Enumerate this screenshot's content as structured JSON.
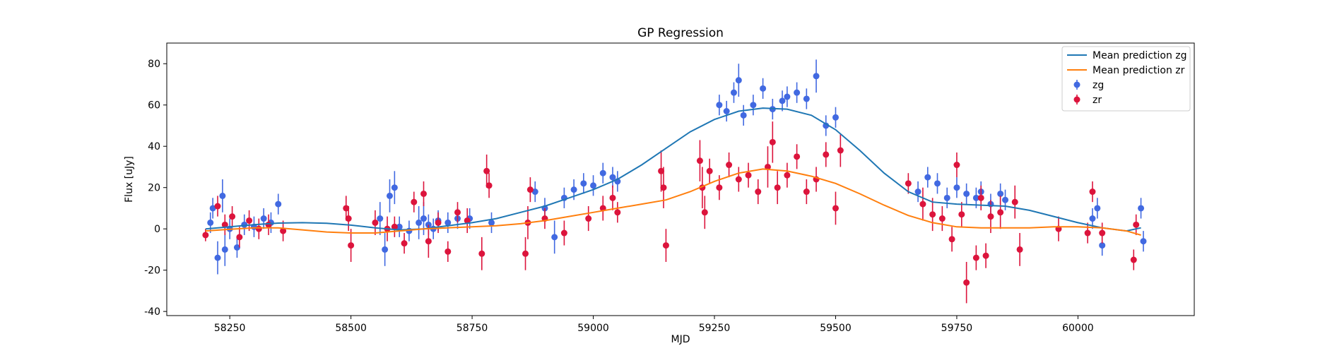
{
  "chart_data": {
    "type": "scatter",
    "title": "GP Regression",
    "xlabel": "MJD",
    "ylabel": "Flux [uJy]",
    "xlim": [
      58120,
      60240
    ],
    "ylim": [
      -42,
      90
    ],
    "xticks": [
      58250,
      58500,
      58750,
      59000,
      59250,
      59500,
      59750,
      60000
    ],
    "yticks": [
      -40,
      -20,
      0,
      20,
      40,
      60,
      80
    ],
    "legend_position": "upper right",
    "grid": false,
    "series": [
      {
        "name": "Mean prediction zg",
        "kind": "line",
        "color": "#1f77b4",
        "x": [
          58200,
          58250,
          58300,
          58350,
          58400,
          58450,
          58500,
          58550,
          58600,
          58650,
          58700,
          58750,
          58800,
          58850,
          58900,
          58950,
          59000,
          59050,
          59100,
          59150,
          59200,
          59250,
          59300,
          59350,
          59400,
          59450,
          59500,
          59550,
          59600,
          59650,
          59700,
          59750,
          59800,
          59850,
          59900,
          59950,
          60000,
          60050,
          60100,
          60130
        ],
        "values": [
          0,
          1,
          2,
          2.8,
          3,
          2.7,
          1.8,
          0.5,
          -0.5,
          0,
          1.5,
          3,
          5,
          8,
          11,
          15,
          19,
          24,
          31,
          39,
          47,
          53,
          57,
          58.5,
          58,
          55,
          48,
          38,
          27,
          18,
          13,
          12,
          11.5,
          11,
          9,
          6,
          3,
          0.5,
          -1,
          0.5
        ]
      },
      {
        "name": "Mean prediction zr",
        "kind": "line",
        "color": "#ff7f0e",
        "x": [
          58200,
          58250,
          58300,
          58350,
          58400,
          58450,
          58500,
          58550,
          58600,
          58650,
          58700,
          58750,
          58800,
          58850,
          58900,
          58950,
          59000,
          59050,
          59100,
          59150,
          59200,
          59250,
          59300,
          59350,
          59400,
          59450,
          59500,
          59550,
          59600,
          59650,
          59700,
          59750,
          59800,
          59850,
          59900,
          59950,
          60000,
          60050,
          60100,
          60130
        ],
        "values": [
          -1,
          -0.2,
          0.5,
          0.5,
          -0.5,
          -1.5,
          -2,
          -2,
          -1,
          0,
          0.5,
          1,
          1.5,
          2.5,
          4,
          6,
          8,
          10,
          12,
          14,
          18,
          23,
          27,
          29,
          28,
          25.5,
          22,
          17,
          11.5,
          6.5,
          3,
          1,
          0.5,
          0.5,
          0.5,
          1,
          1,
          0.5,
          -1,
          -3
        ]
      },
      {
        "name": "zg",
        "kind": "errorbar",
        "color": "#4169e1",
        "x": [
          58210,
          58215,
          58225,
          58235,
          58240,
          58250,
          58265,
          58280,
          58300,
          58320,
          58335,
          58350,
          58560,
          58570,
          58580,
          58590,
          58600,
          58620,
          58640,
          58650,
          58660,
          58670,
          58680,
          58700,
          58720,
          58745,
          58790,
          58880,
          58900,
          58920,
          58940,
          58960,
          58980,
          59000,
          59020,
          59040,
          59050,
          59260,
          59275,
          59290,
          59300,
          59310,
          59330,
          59350,
          59370,
          59390,
          59400,
          59420,
          59440,
          59460,
          59480,
          59500,
          59670,
          59690,
          59710,
          59730,
          59750,
          59770,
          59790,
          59800,
          59820,
          59840,
          59850,
          60030,
          60040,
          60050,
          60130,
          60135
        ],
        "values": [
          3,
          10,
          -14,
          16,
          -10,
          0,
          -9,
          2,
          1,
          5,
          3,
          12,
          5,
          -10,
          16,
          20,
          1,
          -1,
          3,
          5,
          2,
          0,
          4,
          3,
          5,
          5,
          3,
          18,
          10,
          -4,
          15,
          19,
          22,
          21,
          27,
          25,
          23,
          60,
          57,
          66,
          72,
          55,
          60,
          68,
          58,
          62,
          64,
          66,
          63,
          74,
          50,
          54,
          18,
          25,
          22,
          15,
          20,
          17,
          15,
          18,
          12,
          17,
          14,
          5,
          10,
          -8,
          10,
          -6
        ],
        "errors": [
          5,
          5,
          8,
          8,
          8,
          5,
          5,
          5,
          5,
          5,
          5,
          5,
          8,
          8,
          8,
          8,
          5,
          5,
          8,
          8,
          5,
          5,
          5,
          5,
          5,
          5,
          5,
          5,
          5,
          8,
          5,
          5,
          5,
          5,
          5,
          5,
          5,
          5,
          5,
          5,
          8,
          5,
          5,
          5,
          5,
          5,
          5,
          5,
          5,
          8,
          5,
          5,
          5,
          5,
          5,
          5,
          5,
          5,
          5,
          5,
          5,
          5,
          5,
          5,
          5,
          5,
          5,
          5
        ]
      },
      {
        "name": "zr",
        "kind": "errorbar",
        "color": "#dc143c",
        "x": [
          58200,
          58225,
          58240,
          58255,
          58270,
          58290,
          58310,
          58330,
          58360,
          58490,
          58495,
          58500,
          58550,
          58575,
          58590,
          58610,
          58630,
          58650,
          58660,
          58680,
          58700,
          58720,
          58740,
          58770,
          58780,
          58785,
          58860,
          58865,
          58870,
          58900,
          58940,
          58990,
          59020,
          59040,
          59050,
          59140,
          59145,
          59150,
          59220,
          59225,
          59230,
          59240,
          59260,
          59280,
          59300,
          59320,
          59340,
          59360,
          59370,
          59380,
          59400,
          59420,
          59440,
          59460,
          59480,
          59500,
          59510,
          59650,
          59680,
          59700,
          59720,
          59740,
          59750,
          59760,
          59770,
          59790,
          59800,
          59810,
          59820,
          59840,
          59870,
          59880,
          59960,
          60020,
          60030,
          60050,
          60115,
          60120
        ],
        "values": [
          -3,
          11,
          2,
          6,
          -4,
          4,
          0,
          2,
          -1,
          10,
          5,
          -8,
          3,
          0,
          1,
          -7,
          13,
          17,
          -6,
          3,
          -11,
          8,
          4,
          -12,
          28,
          21,
          -12,
          3,
          19,
          5,
          -2,
          5,
          10,
          15,
          8,
          28,
          20,
          -8,
          33,
          20,
          8,
          28,
          20,
          31,
          24,
          26,
          18,
          30,
          42,
          20,
          26,
          35,
          18,
          24,
          36,
          10,
          38,
          22,
          12,
          7,
          5,
          -5,
          31,
          7,
          -26,
          -14,
          15,
          -13,
          6,
          8,
          13,
          -10,
          0,
          -2,
          18,
          -2,
          -15,
          2
        ],
        "errors": [
          3,
          5,
          5,
          5,
          5,
          5,
          5,
          5,
          5,
          6,
          6,
          8,
          6,
          6,
          5,
          5,
          5,
          6,
          8,
          5,
          5,
          5,
          6,
          8,
          8,
          6,
          8,
          8,
          6,
          5,
          6,
          6,
          6,
          6,
          5,
          10,
          10,
          8,
          10,
          10,
          8,
          6,
          6,
          6,
          6,
          6,
          6,
          10,
          10,
          8,
          6,
          6,
          6,
          6,
          6,
          8,
          8,
          5,
          8,
          8,
          6,
          6,
          6,
          6,
          10,
          6,
          6,
          6,
          8,
          8,
          8,
          8,
          6,
          5,
          5,
          5,
          5,
          5
        ]
      }
    ]
  }
}
